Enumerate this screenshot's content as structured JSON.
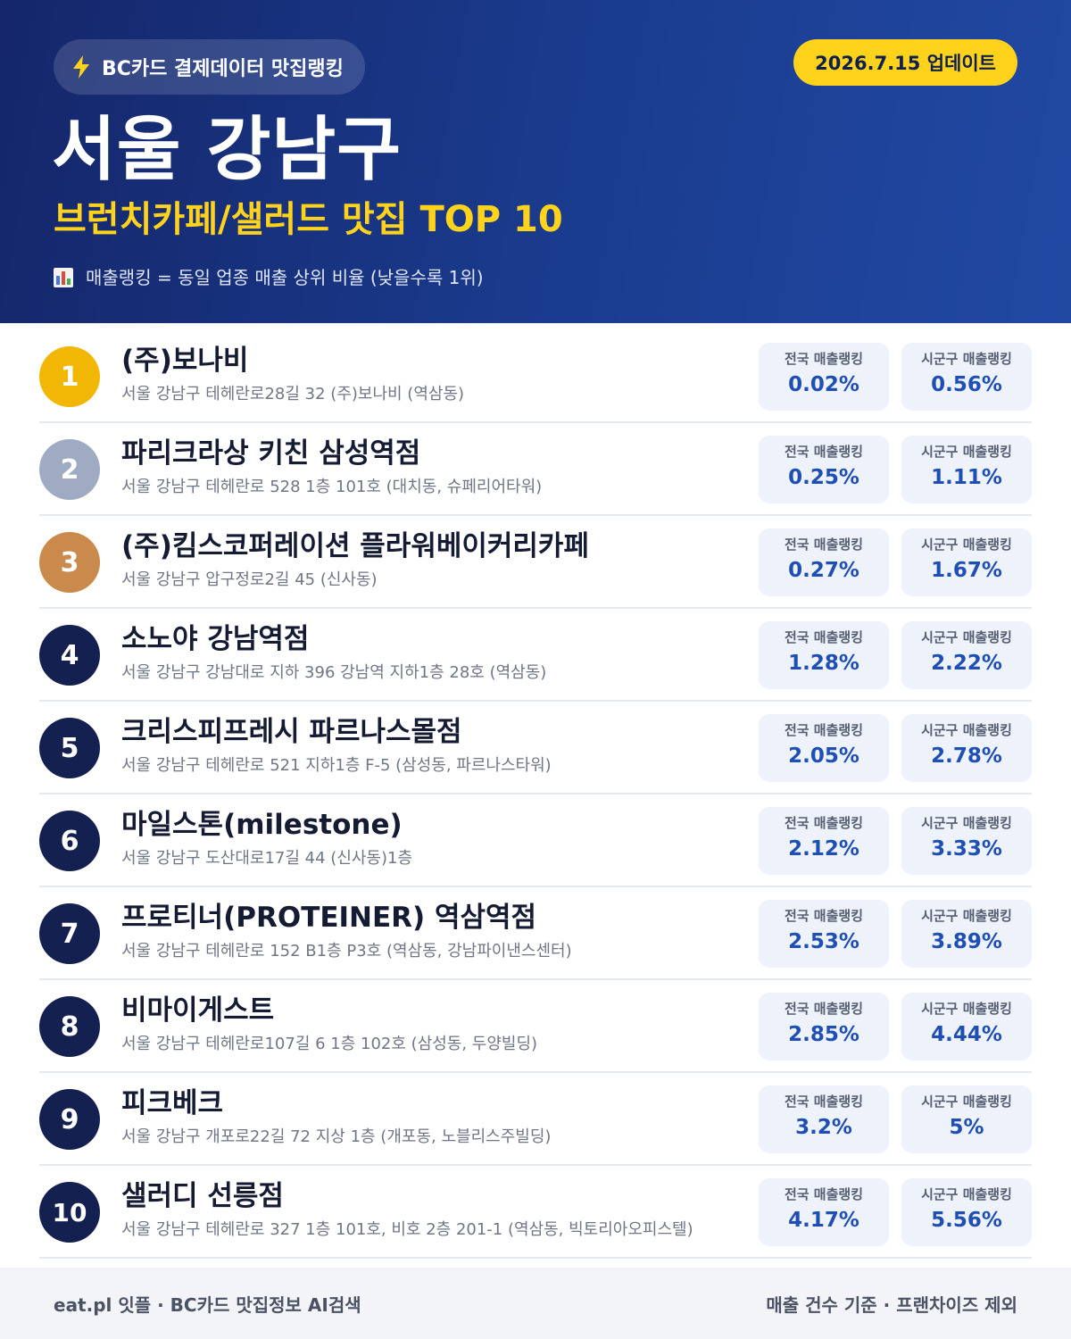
{
  "header": {
    "source_label": "BC카드 결제데이터 맛집랭킹",
    "update_label": "2026.7.15 업데이트",
    "region": "서울 강남구",
    "subtitle": "브런치카페/샐러드 맛집 TOP 10",
    "note": "매출랭킹 = 동일 업종 매출 상위 비율 (낮을수록 1위)",
    "icons": {
      "source": "lightning-icon",
      "note": "bar-chart-icon"
    },
    "colors": {
      "accent": "#ffd21c",
      "bg_start": "#15266a",
      "bg_end": "#2149a3"
    }
  },
  "metric_labels": {
    "national": "전국 매출랭킹",
    "local": "시군구 매출랭킹"
  },
  "rankings": [
    {
      "rank": "1",
      "name": "(주)보나비",
      "address": "서울 강남구 테헤란로28길 32 (주)보나비 (역삼동)",
      "national": "0.02%",
      "local": "0.56%"
    },
    {
      "rank": "2",
      "name": "파리크라상 키친 삼성역점",
      "address": "서울 강남구 테헤란로 528 1층 101호 (대치동, 슈페리어타워)",
      "national": "0.25%",
      "local": "1.11%"
    },
    {
      "rank": "3",
      "name": "(주)킴스코퍼레이션 플라워베이커리카페",
      "address": "서울 강남구 압구정로2길 45 (신사동)",
      "national": "0.27%",
      "local": "1.67%"
    },
    {
      "rank": "4",
      "name": "소노야 강남역점",
      "address": "서울 강남구 강남대로 지하 396 강남역 지하1층 28호 (역삼동)",
      "national": "1.28%",
      "local": "2.22%"
    },
    {
      "rank": "5",
      "name": "크리스피프레시 파르나스몰점",
      "address": "서울 강남구 테헤란로 521 지하1층 F-5 (삼성동, 파르나스타워)",
      "national": "2.05%",
      "local": "2.78%"
    },
    {
      "rank": "6",
      "name": "마일스톤(milestone)",
      "address": "서울 강남구 도산대로17길 44 (신사동)1층",
      "national": "2.12%",
      "local": "3.33%"
    },
    {
      "rank": "7",
      "name": "프로티너(PROTEINER) 역삼역점",
      "address": "서울 강남구 테헤란로 152 B1층 P3호 (역삼동, 강남파이낸스센터)",
      "national": "2.53%",
      "local": "3.89%"
    },
    {
      "rank": "8",
      "name": "비마이게스트",
      "address": "서울 강남구 테헤란로107길 6 1층 102호 (삼성동, 두양빌딩)",
      "national": "2.85%",
      "local": "4.44%"
    },
    {
      "rank": "9",
      "name": "피크베크",
      "address": "서울 강남구 개포로22길 72 지상 1층 (개포동, 노블리스주빌딩)",
      "national": "3.2%",
      "local": "5%"
    },
    {
      "rank": "10",
      "name": "샐러디 선릉점",
      "address": "서울 강남구 테헤란로 327 1층 101호, 비호 2층 201-1 (역삼동, 빅토리아오피스텔)",
      "national": "4.17%",
      "local": "5.56%"
    }
  ],
  "footer": {
    "left": "eat.pl 잇플 · BC카드 맛집정보 AI검색",
    "right": "매출 건수 기준 · 프랜차이즈 제외"
  }
}
